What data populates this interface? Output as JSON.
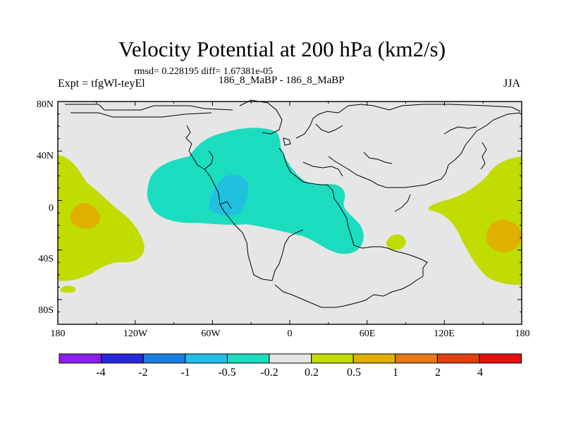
{
  "title": "Velocity Potential at 200 hPa (km2/s)",
  "stats": "rmsd= 0.228195 diff= 1.67381e-05",
  "experiment": "Expt = tfgWl-teyEl",
  "cases": "186_8_MaBP - 186_8_MaBP",
  "season": "JJA",
  "map": {
    "lat_labels": [
      "80N",
      "40N",
      "0",
      "40S",
      "80S"
    ],
    "lon_labels": [
      "180",
      "120W",
      "60W",
      "0",
      "60E",
      "120E",
      "180"
    ],
    "fill_colors": {
      "neutral": "#e6e6e6",
      "neg_0_2": "#1cdcc0",
      "neg_0_5": "#20c0e0",
      "pos_0_2": "#c0dc00",
      "pos_0_5": "#e0b000"
    }
  },
  "colorbar": {
    "colors": [
      "#8c1ef0",
      "#2828dc",
      "#1a7ee0",
      "#22c0e6",
      "#1cdcc0",
      "#e6e6e6",
      "#c0dc00",
      "#e0b000",
      "#e87818",
      "#e04010",
      "#e61010"
    ],
    "labels": [
      "-4",
      "-2",
      "-1",
      "-0.5",
      "-0.2",
      "0.2",
      "0.5",
      "1",
      "2",
      "4"
    ]
  }
}
